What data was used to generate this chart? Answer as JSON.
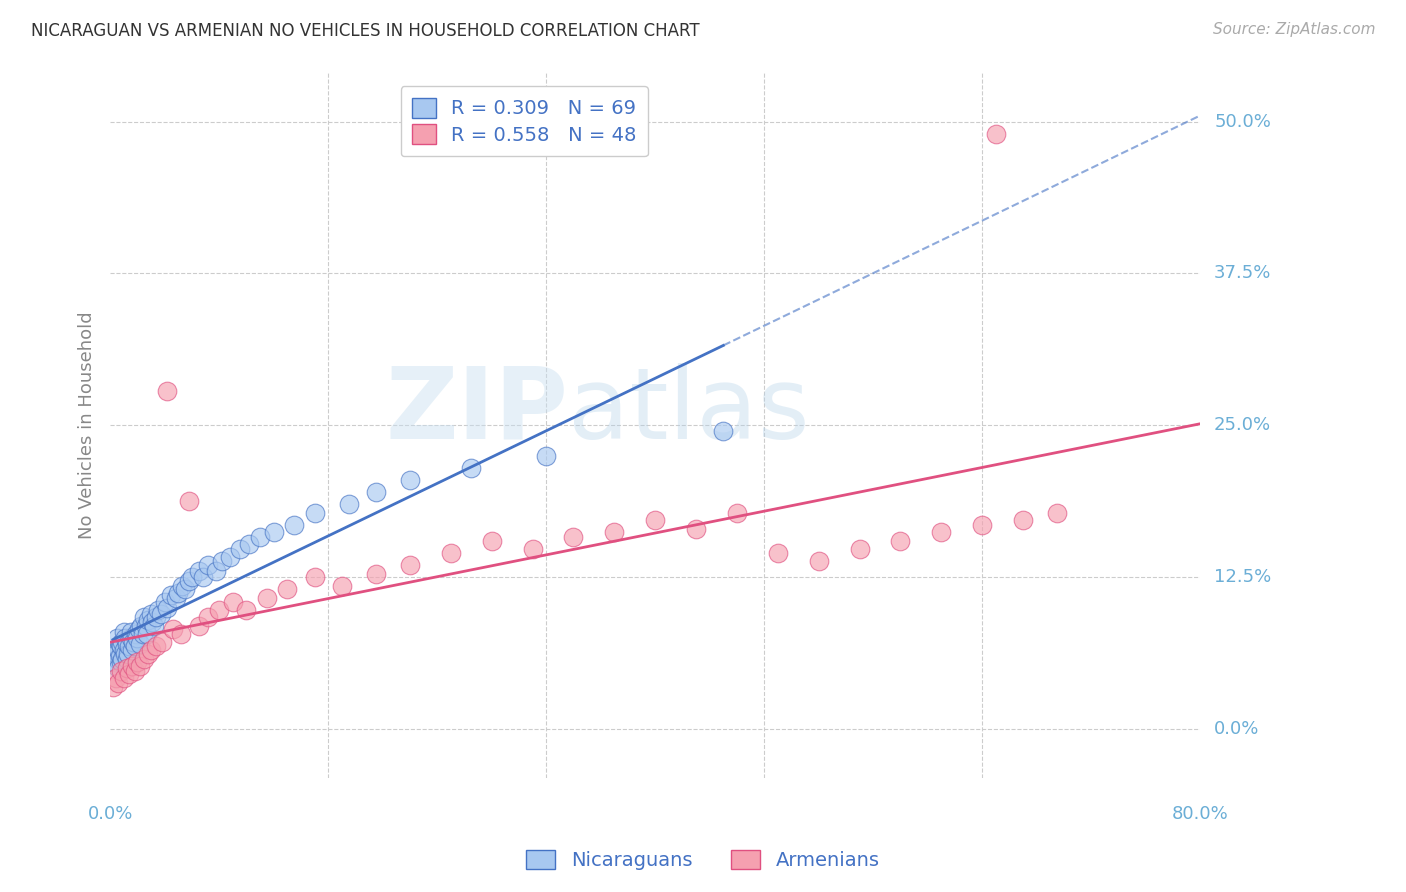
{
  "title": "NICARAGUAN VS ARMENIAN NO VEHICLES IN HOUSEHOLD CORRELATION CHART",
  "source": "Source: ZipAtlas.com",
  "ylabel": "No Vehicles in Household",
  "ytick_labels": [
    "0.0%",
    "12.5%",
    "25.0%",
    "37.5%",
    "50.0%"
  ],
  "ytick_values": [
    0.0,
    0.125,
    0.25,
    0.375,
    0.5
  ],
  "xlim": [
    0.0,
    0.8
  ],
  "ylim": [
    -0.04,
    0.54
  ],
  "nicaraguan_color": "#a8c8f0",
  "armenian_color": "#f5a0b0",
  "nicaraguan_line_color": "#4472c4",
  "armenian_line_color": "#e05080",
  "legend_R_nicaraguan": "R = 0.309",
  "legend_N_nicaraguan": "N = 69",
  "legend_R_armenian": "R = 0.558",
  "legend_N_armenian": "N = 48",
  "watermark_zip": "ZIP",
  "watermark_atlas": "atlas",
  "background_color": "#ffffff",
  "grid_color": "#cccccc",
  "tick_color": "#6baed6",
  "title_color": "#333333",
  "axis_label_color": "#888888",
  "nicaraguan_x": [
    0.002,
    0.003,
    0.004,
    0.005,
    0.005,
    0.006,
    0.006,
    0.007,
    0.007,
    0.008,
    0.008,
    0.009,
    0.009,
    0.01,
    0.01,
    0.011,
    0.011,
    0.012,
    0.012,
    0.013,
    0.014,
    0.015,
    0.015,
    0.016,
    0.017,
    0.018,
    0.019,
    0.02,
    0.021,
    0.022,
    0.023,
    0.024,
    0.025,
    0.026,
    0.027,
    0.028,
    0.03,
    0.031,
    0.032,
    0.034,
    0.035,
    0.037,
    0.04,
    0.042,
    0.045,
    0.048,
    0.05,
    0.053,
    0.055,
    0.058,
    0.06,
    0.065,
    0.068,
    0.072,
    0.078,
    0.082,
    0.088,
    0.095,
    0.102,
    0.11,
    0.12,
    0.135,
    0.15,
    0.175,
    0.195,
    0.22,
    0.265,
    0.32,
    0.45
  ],
  "nicaraguan_y": [
    0.06,
    0.055,
    0.062,
    0.058,
    0.075,
    0.05,
    0.065,
    0.06,
    0.07,
    0.055,
    0.068,
    0.072,
    0.058,
    0.065,
    0.08,
    0.062,
    0.075,
    0.058,
    0.07,
    0.062,
    0.068,
    0.075,
    0.08,
    0.065,
    0.072,
    0.068,
    0.078,
    0.075,
    0.082,
    0.07,
    0.085,
    0.078,
    0.092,
    0.085,
    0.078,
    0.09,
    0.095,
    0.088,
    0.085,
    0.092,
    0.098,
    0.095,
    0.105,
    0.1,
    0.11,
    0.108,
    0.112,
    0.118,
    0.115,
    0.122,
    0.125,
    0.13,
    0.125,
    0.135,
    0.13,
    0.138,
    0.142,
    0.148,
    0.152,
    0.158,
    0.162,
    0.168,
    0.178,
    0.185,
    0.195,
    0.205,
    0.215,
    0.225,
    0.245
  ],
  "armenian_x": [
    0.002,
    0.004,
    0.006,
    0.008,
    0.01,
    0.012,
    0.014,
    0.016,
    0.018,
    0.02,
    0.022,
    0.025,
    0.028,
    0.03,
    0.034,
    0.038,
    0.042,
    0.046,
    0.052,
    0.058,
    0.065,
    0.072,
    0.08,
    0.09,
    0.1,
    0.115,
    0.13,
    0.15,
    0.17,
    0.195,
    0.22,
    0.25,
    0.28,
    0.31,
    0.34,
    0.37,
    0.4,
    0.43,
    0.46,
    0.49,
    0.52,
    0.55,
    0.58,
    0.61,
    0.64,
    0.67,
    0.695,
    0.65
  ],
  "armenian_y": [
    0.035,
    0.042,
    0.038,
    0.048,
    0.042,
    0.05,
    0.045,
    0.052,
    0.048,
    0.055,
    0.052,
    0.058,
    0.062,
    0.065,
    0.068,
    0.072,
    0.278,
    0.082,
    0.078,
    0.188,
    0.085,
    0.092,
    0.098,
    0.105,
    0.098,
    0.108,
    0.115,
    0.125,
    0.118,
    0.128,
    0.135,
    0.145,
    0.155,
    0.148,
    0.158,
    0.162,
    0.172,
    0.165,
    0.178,
    0.145,
    0.138,
    0.148,
    0.155,
    0.162,
    0.168,
    0.172,
    0.178,
    0.49
  ]
}
